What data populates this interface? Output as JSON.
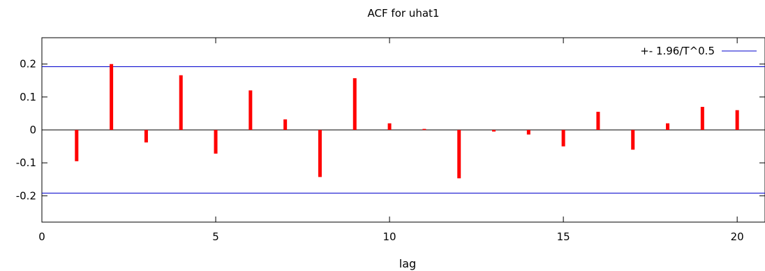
{
  "chart_data": {
    "type": "bar",
    "title": "ACF for uhat1",
    "xlabel": "lag",
    "ylabel": "",
    "xlim": [
      0,
      20.8
    ],
    "ylim": [
      -0.28,
      0.28
    ],
    "x_ticks": [
      0,
      5,
      10,
      15,
      20
    ],
    "x_tick_labels": [
      "0",
      "5",
      "10",
      "15",
      "20"
    ],
    "y_ticks": [
      -0.2,
      -0.1,
      0,
      0.1,
      0.2
    ],
    "y_tick_labels": [
      "-0.2",
      "-0.1",
      "0",
      "0.1",
      "0.2"
    ],
    "grid": false,
    "legend_position": "top-right",
    "series": [
      {
        "lags": [
          1,
          2,
          3,
          4,
          5,
          6,
          7,
          8,
          9,
          10,
          11,
          12,
          13,
          14,
          15,
          16,
          17,
          18,
          19,
          20
        ],
        "values": [
          -0.095,
          0.2,
          -0.038,
          0.166,
          -0.072,
          0.12,
          0.032,
          -0.143,
          0.157,
          0.02,
          0.003,
          -0.147,
          -0.005,
          -0.014,
          -0.05,
          0.055,
          -0.06,
          0.02,
          0.07,
          0.06
        ],
        "color": "#ff0000"
      }
    ],
    "bands": {
      "label": "+- 1.96/T^0.5",
      "value": 0.192,
      "color": "#0000cc"
    }
  }
}
